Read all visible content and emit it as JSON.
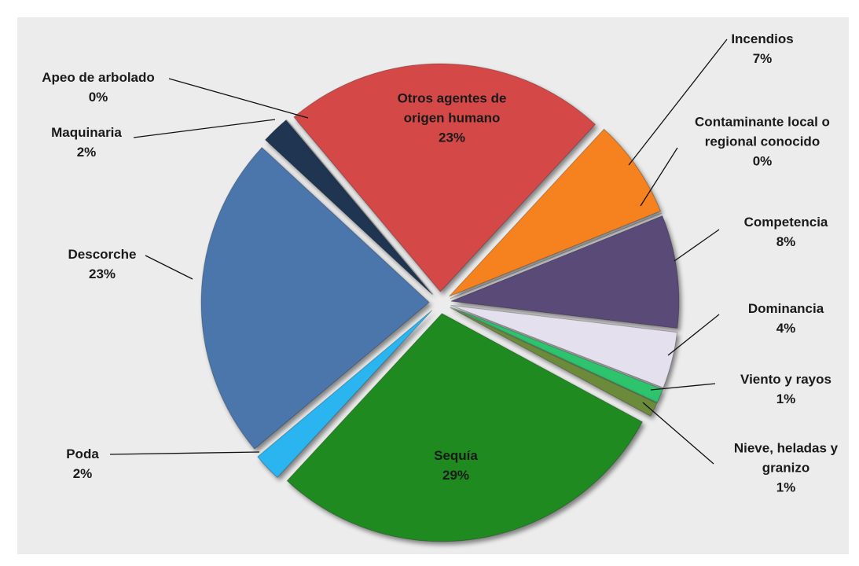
{
  "chart_data": {
    "type": "pie",
    "categories": [
      "Otros agentes de origen humano",
      "Incendios",
      "Contaminante local o regional conocido",
      "Competencia",
      "Dominancia",
      "Viento y rayos",
      "Nieve, heladas y granizo",
      "Sequía",
      "Poda",
      "Descorche",
      "Maquinaria",
      "Apeo de arbolado"
    ],
    "values": [
      23,
      7,
      0,
      8,
      4,
      1,
      1,
      29,
      2,
      23,
      2,
      0
    ],
    "value_labels": [
      "23%",
      "7%",
      "0%",
      "8%",
      "4%",
      "1%",
      "1%",
      "29%",
      "2%",
      "23%",
      "2%",
      "0%"
    ],
    "colors": [
      "#d44848",
      "#f5821f",
      "#b03030",
      "#5a4a78",
      "#e4e0ee",
      "#2ec46e",
      "#6b8a3a",
      "#1f8a1f",
      "#2ab4f0",
      "#4a76ab",
      "#1f3552",
      "#1f3552"
    ]
  }
}
